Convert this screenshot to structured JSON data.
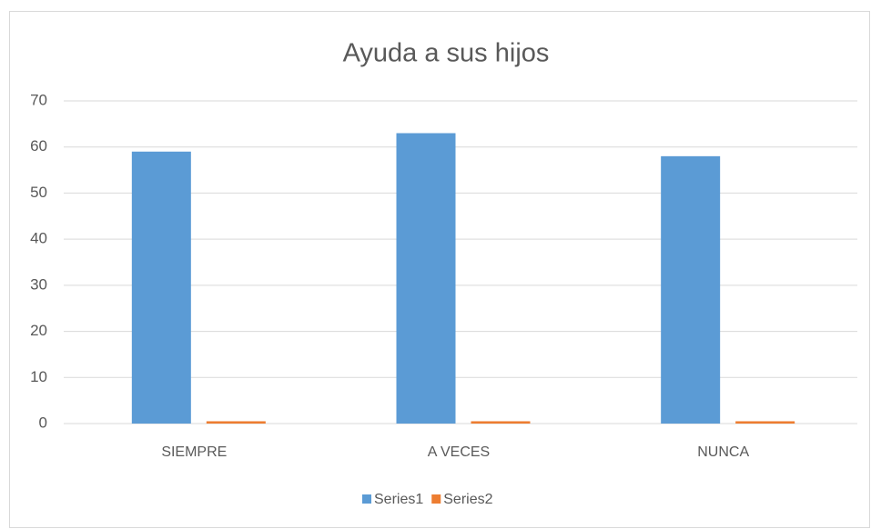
{
  "chart_data": {
    "type": "bar",
    "title": "Ayuda a sus hijos",
    "categories": [
      "SIEMPRE",
      "A VECES",
      "NUNCA"
    ],
    "series": [
      {
        "name": "Series1",
        "color": "#5b9bd5",
        "values": [
          59,
          63,
          58
        ]
      },
      {
        "name": "Series2",
        "color": "#ed7d31",
        "values": [
          0.5,
          0.5,
          0.5
        ]
      }
    ],
    "ylim": [
      0,
      70
    ],
    "yticks": [
      0,
      10,
      20,
      30,
      40,
      50,
      60,
      70
    ],
    "grid": true,
    "legend": "bottom"
  }
}
